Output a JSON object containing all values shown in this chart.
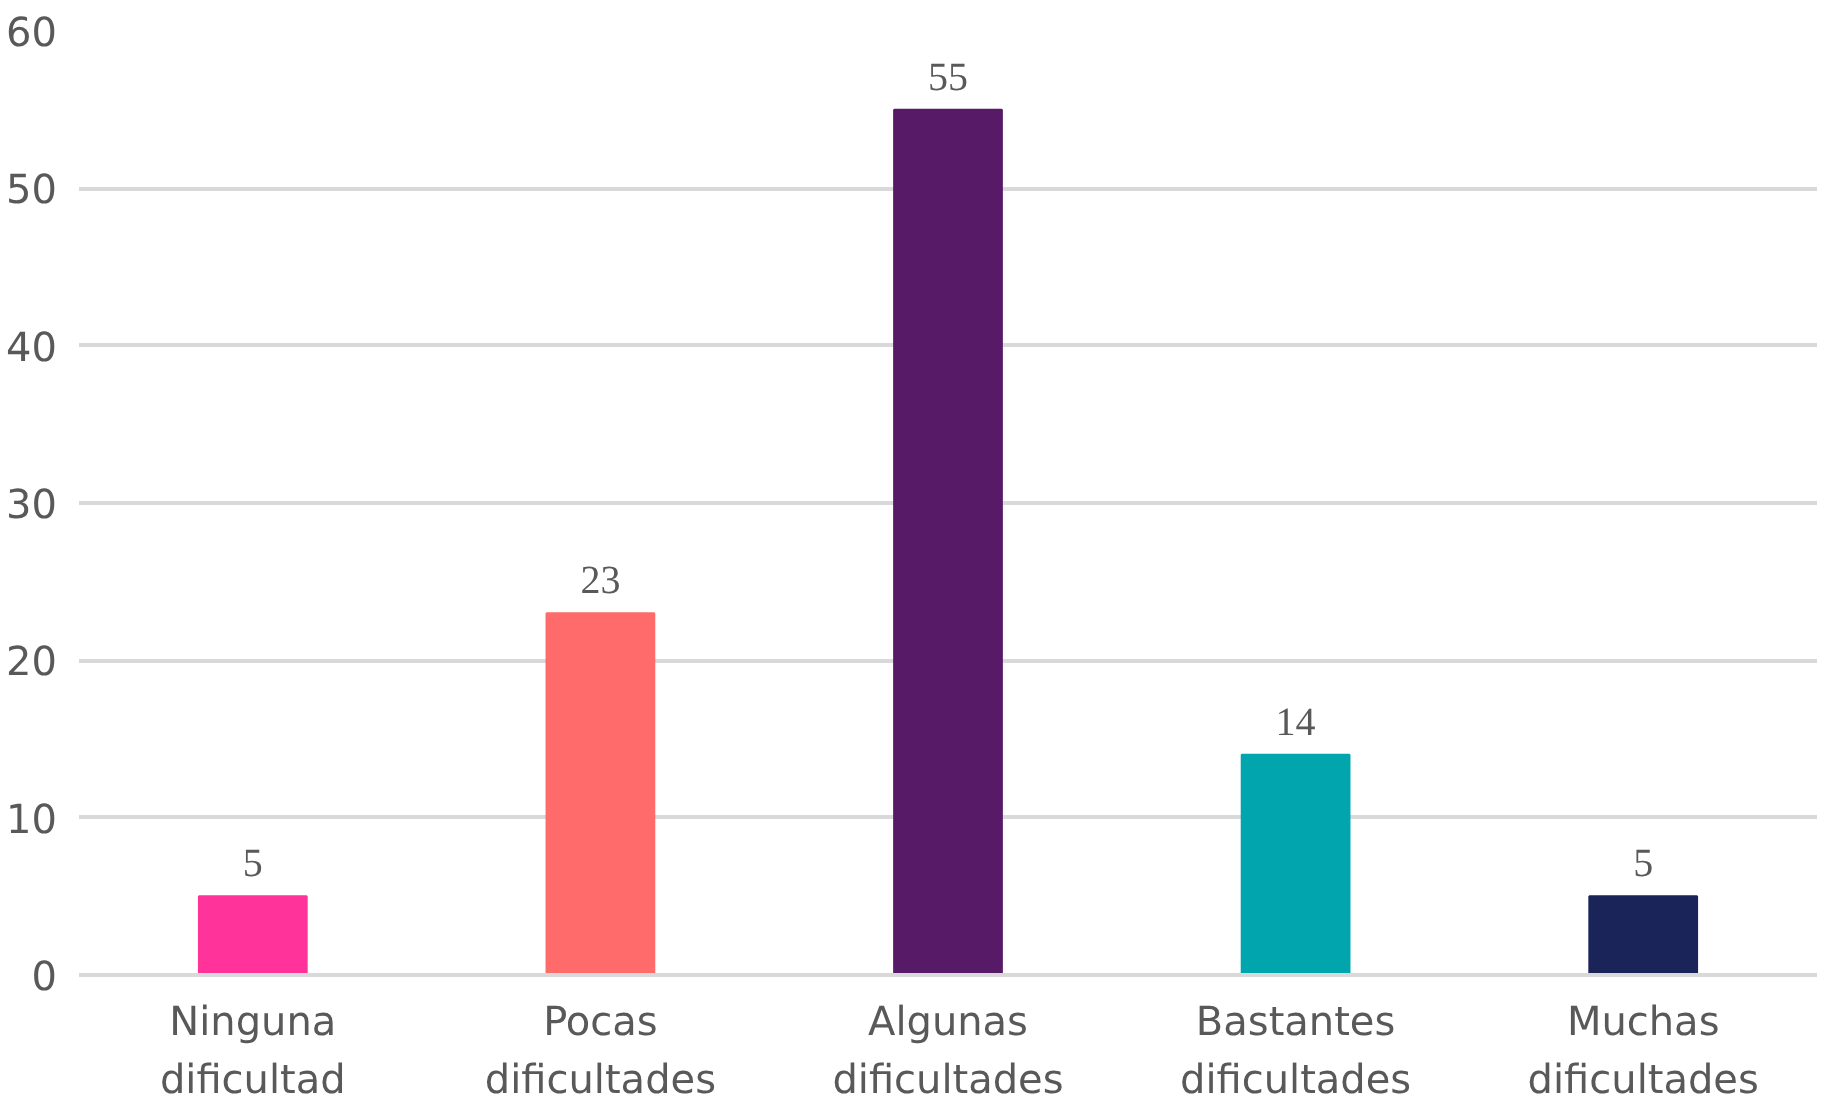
{
  "chart_data": {
    "type": "bar",
    "categories": [
      "Ninguna dificultad",
      "Pocas dificultades",
      "Algunas dificultades",
      "Bastantes dificultades",
      "Muchas dificultades"
    ],
    "values": [
      5,
      23,
      55,
      14,
      5
    ],
    "colors": [
      "#ff3399",
      "#ff6b6b",
      "#561a66",
      "#00a5ad",
      "#1b2459"
    ],
    "ylim": [
      0,
      60
    ],
    "yticks": [
      0,
      10,
      20,
      30,
      40,
      50,
      60
    ],
    "grid": "y",
    "data_labels": true
  }
}
